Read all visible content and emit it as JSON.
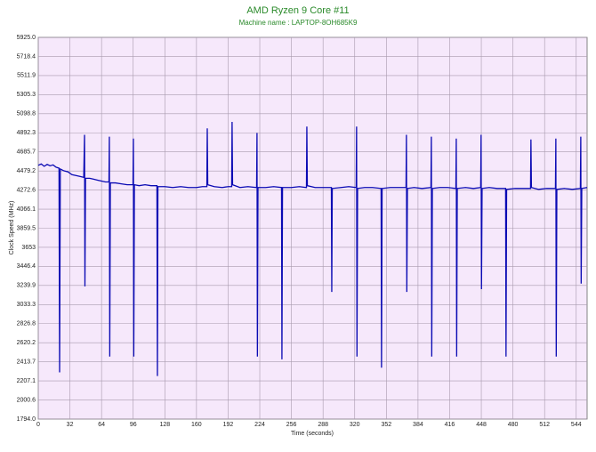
{
  "chart_data": {
    "type": "line",
    "title": "AMD Ryzen 9 Core #11",
    "subtitle": "Machine name : LAPTOP-8OH685K9",
    "x_label": "Time (seconds)",
    "y_label": "Clock Speed (MHz)",
    "xlim": [
      0,
      555
    ],
    "xticks": [
      0,
      32,
      64,
      96,
      128,
      160,
      192,
      224,
      256,
      288,
      320,
      352,
      384,
      416,
      448,
      480,
      512,
      544
    ],
    "ylim": [
      1794,
      5925
    ],
    "yticks": [
      {
        "value": 1794,
        "label": "1794.0"
      },
      2000.6,
      2207.1,
      2413.7,
      2620.2,
      2826.8,
      3033.3,
      3239.9,
      3446.4,
      3653,
      3859.5,
      4066.1,
      4272.6,
      4479.2,
      4685.7,
      4892.3,
      5098.8,
      5305.3,
      5511.9,
      5718.4,
      {
        "value": 5925,
        "label": "5925.0"
      }
    ],
    "grid": true,
    "x": [
      0,
      3,
      6,
      9,
      12,
      15,
      18,
      21,
      21.6,
      22.3,
      26,
      30,
      34,
      38,
      42,
      46,
      46.8,
      47.2,
      47.8,
      52,
      56,
      60,
      64,
      68,
      71.5,
      71.9,
      72.3,
      72.9,
      78,
      84,
      90,
      95.8,
      96.2,
      96.6,
      97.2,
      102,
      108,
      114,
      120,
      120.5,
      121,
      128,
      136,
      144,
      152,
      160,
      166,
      170.5,
      170.9,
      171.4,
      178,
      186,
      192,
      195.6,
      196,
      196.5,
      204,
      212,
      220.8,
      221.2,
      221.6,
      222.2,
      230,
      238,
      246,
      246.4,
      247,
      256,
      264,
      271.2,
      271.6,
      272.1,
      280,
      288,
      296.4,
      296.8,
      297.3,
      306,
      314,
      321.5,
      321.9,
      322.3,
      322.9,
      330,
      338,
      346.7,
      347.1,
      347.7,
      356,
      364,
      371.9,
      372.3,
      372.7,
      373.3,
      380,
      388,
      397.1,
      397.5,
      397.9,
      398.5,
      406,
      414,
      422.3,
      422.7,
      423.1,
      423.7,
      432,
      440,
      447.4,
      447.8,
      448.2,
      448.8,
      456,
      464,
      472.6,
      473,
      473.6,
      482,
      490,
      497.8,
      498.2,
      498.7,
      506,
      514,
      523,
      523.4,
      523.8,
      524.4,
      532,
      540,
      548.2,
      548.6,
      549,
      549.6,
      555
    ],
    "series": [
      {
        "name": "Clock Speed",
        "color": "#0a0ab4",
        "values": [
          4540,
          4555,
          4530,
          4550,
          4535,
          4545,
          4520,
          4510,
          2300,
          4500,
          4480,
          4470,
          4440,
          4430,
          4420,
          4410,
          4870,
          3230,
          4400,
          4400,
          4390,
          4380,
          4370,
          4360,
          4360,
          4850,
          2470,
          4350,
          4350,
          4340,
          4330,
          4330,
          4830,
          2470,
          4330,
          4320,
          4330,
          4320,
          4320,
          2260,
          4310,
          4310,
          4300,
          4310,
          4300,
          4300,
          4310,
          4310,
          4940,
          4330,
          4310,
          4300,
          4310,
          4310,
          5010,
          4330,
          4300,
          4310,
          4300,
          4890,
          2470,
          4300,
          4300,
          4310,
          4300,
          2440,
          4300,
          4300,
          4310,
          4300,
          4960,
          4320,
          4300,
          4300,
          4300,
          3170,
          4290,
          4300,
          4310,
          4300,
          4960,
          2470,
          4290,
          4300,
          4300,
          4290,
          2350,
          4290,
          4300,
          4300,
          4300,
          4870,
          3170,
          4290,
          4300,
          4290,
          4300,
          4850,
          2470,
          4290,
          4300,
          4300,
          4290,
          4830,
          2470,
          4290,
          4300,
          4290,
          4300,
          4870,
          3200,
          4290,
          4300,
          4290,
          4290,
          2470,
          4280,
          4290,
          4290,
          4290,
          4820,
          4300,
          4280,
          4290,
          4290,
          4830,
          2470,
          4280,
          4290,
          4280,
          4290,
          4850,
          3260,
          4290,
          4300
        ]
      }
    ]
  }
}
